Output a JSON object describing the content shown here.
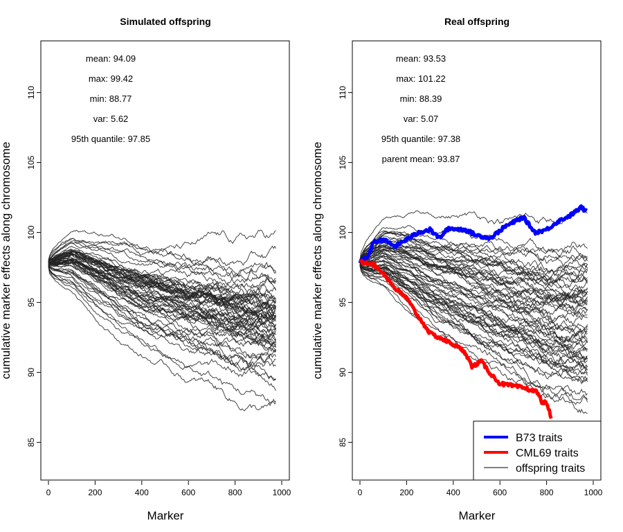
{
  "chart_data": [
    {
      "type": "line",
      "title": "Simulated offspring",
      "xlabel": "Marker",
      "ylabel": "cumulative marker effects along chromosome",
      "xlim": [
        0,
        1000
      ],
      "ylim": [
        83,
        113
      ],
      "xticks": [
        "0",
        "200",
        "400",
        "600",
        "800",
        "1000"
      ],
      "yticks": [
        "85",
        "90",
        "95",
        "100",
        "105",
        "110"
      ],
      "grid": false,
      "stats": [
        "mean: 94.09",
        "max: 99.42",
        "min: 88.77",
        "var: 5.62",
        "95th quantile: 97.85"
      ],
      "series": [
        {
          "color": "#222222",
          "lineWidth": 1,
          "points": [
            [
              0,
              97.8
            ],
            [
              100,
              98.2
            ],
            [
              200,
              97.4
            ],
            [
              300,
              96.6
            ],
            [
              400,
              96.0
            ],
            [
              500,
              95.6
            ],
            [
              600,
              95.1
            ],
            [
              700,
              94.9
            ],
            [
              800,
              94.3
            ],
            [
              900,
              94.2
            ],
            [
              975,
              94.09
            ]
          ],
          "spread_start": 0.4,
          "spread_end": 10.6,
          "count": 60
        }
      ]
    },
    {
      "type": "line",
      "title": "Real offspring",
      "xlabel": "Marker",
      "ylabel": "cumulative marker effects along chromosome",
      "xlim": [
        0,
        1000
      ],
      "ylim": [
        83,
        113
      ],
      "xticks": [
        "0",
        "200",
        "400",
        "600",
        "800",
        "1000"
      ],
      "yticks": [
        "85",
        "90",
        "95",
        "100",
        "105",
        "110"
      ],
      "grid": false,
      "stats": [
        "mean: 93.53",
        "max: 101.22",
        "min: 88.39",
        "var: 5.07",
        "95th quantile: 97.38",
        "parent mean: 93.87"
      ],
      "series": [
        {
          "name": "offspring traits",
          "color": "#222222",
          "lineWidth": 1,
          "points": [
            [
              0,
              97.8
            ],
            [
              100,
              98.3
            ],
            [
              200,
              97.6
            ],
            [
              300,
              96.8
            ],
            [
              400,
              96.2
            ],
            [
              500,
              95.6
            ],
            [
              600,
              95.0
            ],
            [
              700,
              94.5
            ],
            [
              800,
              93.9
            ],
            [
              900,
              93.6
            ],
            [
              975,
              93.53
            ]
          ],
          "spread_start": 0.4,
          "spread_end": 12.8,
          "count": 60
        },
        {
          "name": "B73 traits",
          "color": "#0000ff",
          "lineWidth": 5,
          "points": [
            [
              0,
              97.9
            ],
            [
              30,
              98.2
            ],
            [
              60,
              99.3
            ],
            [
              100,
              99.5
            ],
            [
              150,
              99.0
            ],
            [
              200,
              99.5
            ],
            [
              250,
              100.0
            ],
            [
              300,
              100.2
            ],
            [
              340,
              99.6
            ],
            [
              380,
              100.3
            ],
            [
              450,
              100.2
            ],
            [
              500,
              99.8
            ],
            [
              560,
              99.6
            ],
            [
              620,
              100.4
            ],
            [
              700,
              101.1
            ],
            [
              750,
              100.0
            ],
            [
              800,
              100.2
            ],
            [
              850,
              100.8
            ],
            [
              900,
              101.2
            ],
            [
              950,
              101.8
            ],
            [
              975,
              101.4
            ]
          ]
        },
        {
          "name": "CML69 traits",
          "color": "#ff0000",
          "lineWidth": 5,
          "points": [
            [
              0,
              97.9
            ],
            [
              50,
              97.8
            ],
            [
              100,
              97.1
            ],
            [
              150,
              96.0
            ],
            [
              200,
              95.3
            ],
            [
              250,
              94.0
            ],
            [
              300,
              92.8
            ],
            [
              350,
              92.4
            ],
            [
              400,
              92.0
            ],
            [
              450,
              91.5
            ],
            [
              480,
              90.4
            ],
            [
              520,
              90.8
            ],
            [
              560,
              89.9
            ],
            [
              600,
              89.2
            ],
            [
              700,
              88.9
            ],
            [
              760,
              88.6
            ],
            [
              780,
              87.9
            ],
            [
              800,
              87.8
            ],
            [
              820,
              86.8
            ]
          ]
        }
      ],
      "legend": {
        "position": "bottom-right",
        "entries": [
          "B73 traits",
          "CML69 traits",
          "offspring traits"
        ]
      }
    }
  ]
}
